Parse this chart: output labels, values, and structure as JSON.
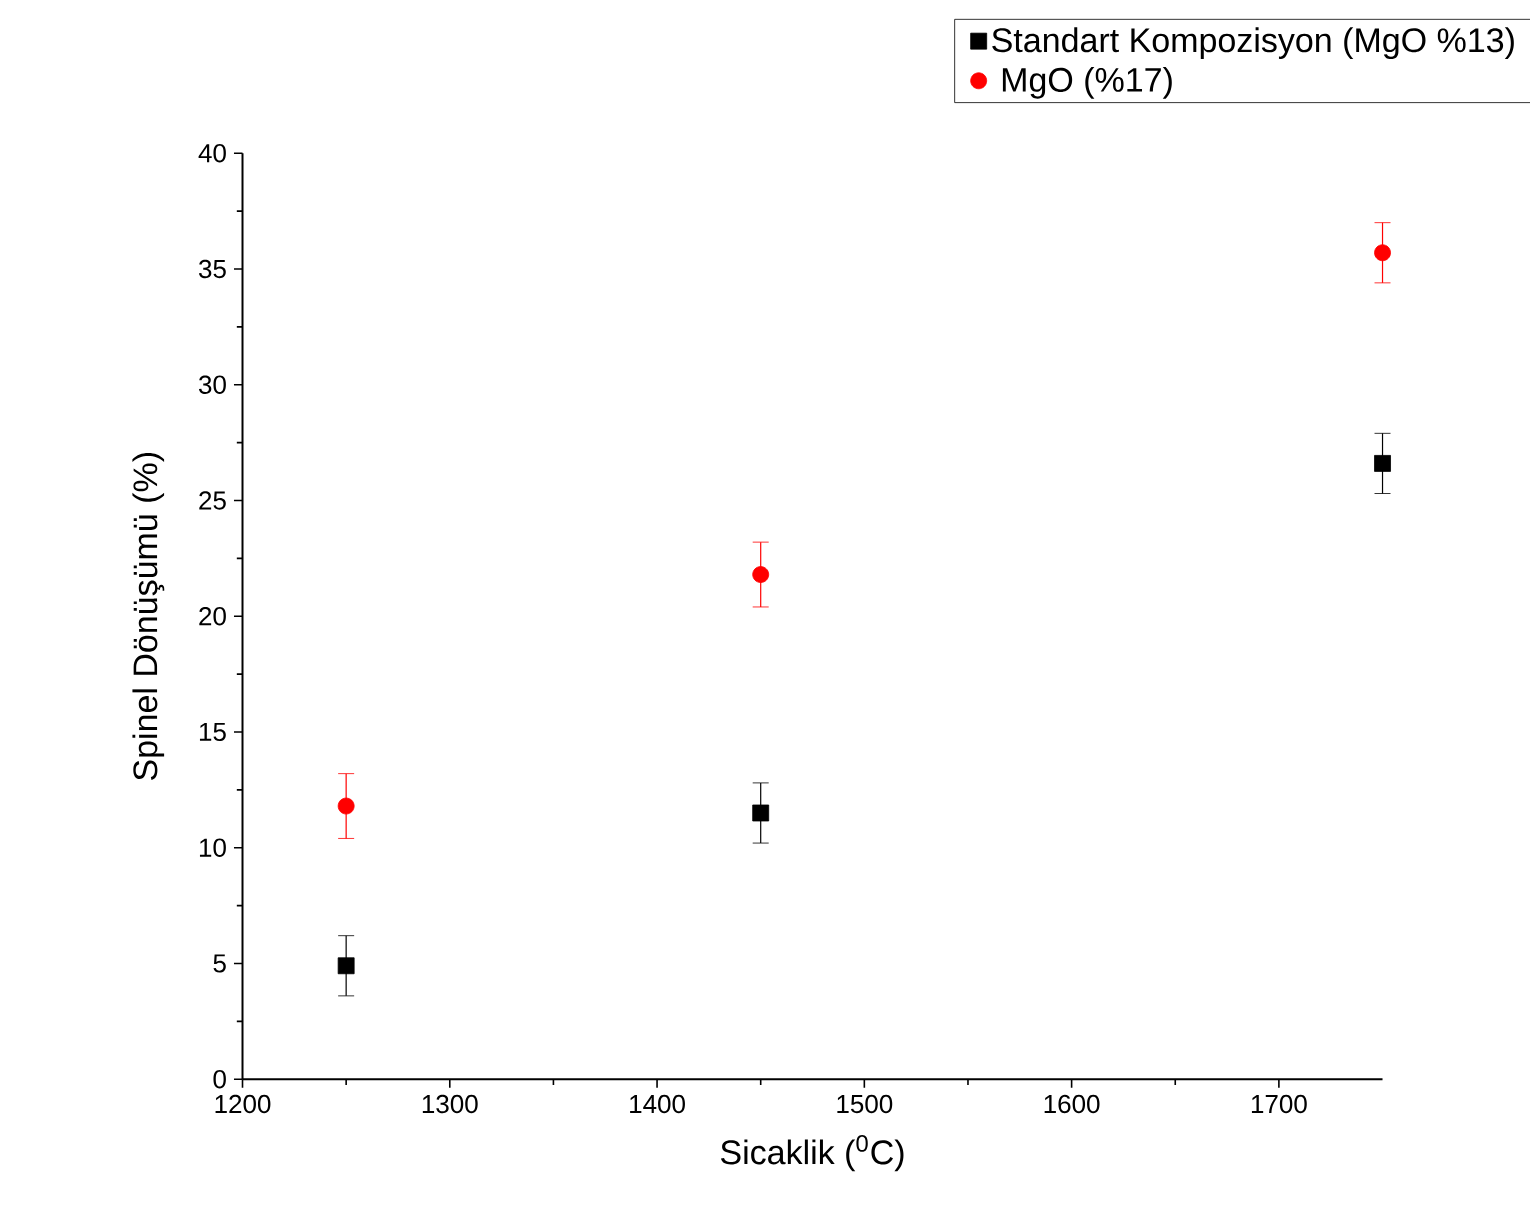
{
  "chart_data": {
    "type": "scatter",
    "xlabel": "Sicaklik ($^{0}$C)",
    "ylabel": "Spinel Dönüşümü (%)",
    "xlim": [
      1200,
      1750
    ],
    "xticks": [
      1200,
      1300,
      1400,
      1500,
      1600,
      1700
    ],
    "ylim": [
      0,
      40
    ],
    "yticks": [
      0,
      5,
      10,
      15,
      20,
      25,
      30,
      35,
      40
    ],
    "legend": "top right",
    "grid": false,
    "series": [
      {
        "name": "Standart Kompozisyon (MgO %13)",
        "color": "#000000",
        "marker": "square",
        "x": [
          1250,
          1450,
          1750
        ],
        "values": [
          4.9,
          11.5,
          26.6
        ],
        "errors": [
          1.3,
          1.3,
          1.3
        ]
      },
      {
        "name": " MgO (%17)",
        "color": "#ff0000",
        "marker": "circle",
        "x": [
          1250,
          1450,
          1750
        ],
        "values": [
          11.8,
          21.8,
          35.7
        ],
        "errors": [
          1.4,
          1.4,
          1.3
        ]
      }
    ]
  }
}
